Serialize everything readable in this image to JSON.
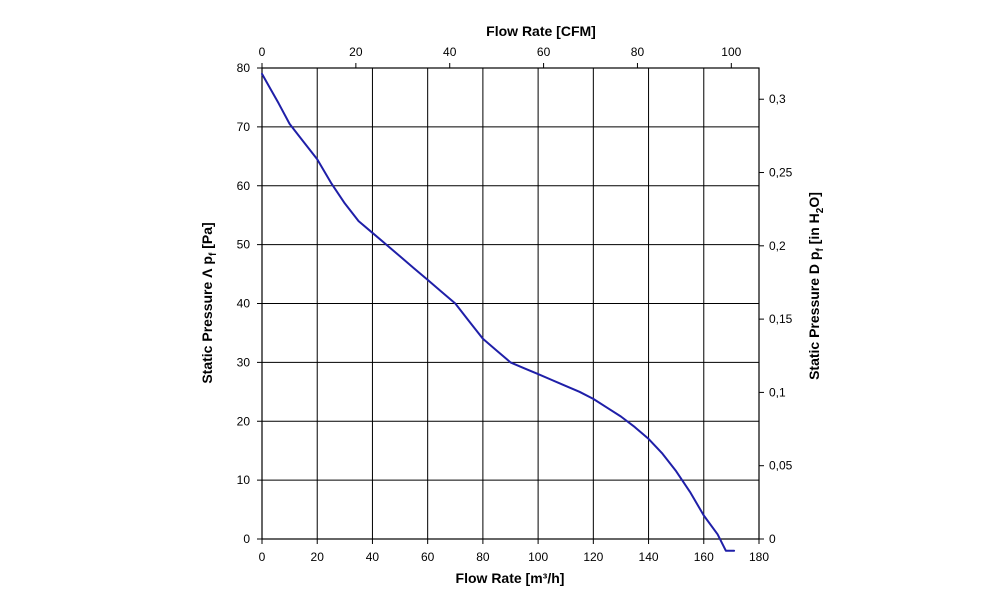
{
  "chart_data": {
    "type": "line",
    "bottom_axis": {
      "title": "Flow Rate [m³/h]",
      "range": [
        0,
        180
      ],
      "ticks": [
        "0",
        "20",
        "40",
        "60",
        "80",
        "100",
        "120",
        "140",
        "160",
        "180"
      ]
    },
    "top_axis": {
      "title": "Flow Rate [CFM]",
      "range": [
        0,
        105.9
      ],
      "ticks": [
        "0",
        "20",
        "40",
        "60",
        "80",
        "100"
      ]
    },
    "left_axis": {
      "title_prefix": "Static Pressure Λ p",
      "title_sub": "f",
      "title_suffix": " [Pa]",
      "range": [
        0,
        80
      ],
      "ticks": [
        "0",
        "10",
        "20",
        "30",
        "40",
        "50",
        "60",
        "70",
        "80"
      ]
    },
    "right_axis": {
      "title_prefix": "Static Pressure D p",
      "title_sub": "f",
      "title_mid": " [in H",
      "title_sub2": "2",
      "title_suffix": "O]",
      "range": [
        0,
        0.3213
      ],
      "ticks": [
        "0",
        "0,05",
        "0,1",
        "0,15",
        "0,2",
        "0,25",
        "0,3"
      ]
    },
    "grid": true,
    "series": [
      {
        "color": "#1f1fa8",
        "x": [
          0,
          3,
          6,
          10,
          15,
          20,
          25,
          30,
          35,
          40,
          45,
          50,
          55,
          60,
          65,
          70,
          75,
          80,
          85,
          90,
          95,
          100,
          105,
          110,
          115,
          120,
          125,
          130,
          135,
          140,
          145,
          150,
          155,
          160,
          165,
          168,
          171
        ],
        "y": [
          79,
          76.5,
          74,
          70.5,
          67.5,
          64.5,
          60.5,
          57,
          54,
          52,
          50,
          48,
          46,
          44,
          42,
          40,
          37,
          34,
          32,
          30,
          29,
          28,
          27,
          26,
          25,
          23.8,
          22.3,
          20.8,
          19,
          17,
          14.5,
          11.5,
          8,
          4,
          0.8,
          -2,
          -2
        ]
      }
    ]
  }
}
